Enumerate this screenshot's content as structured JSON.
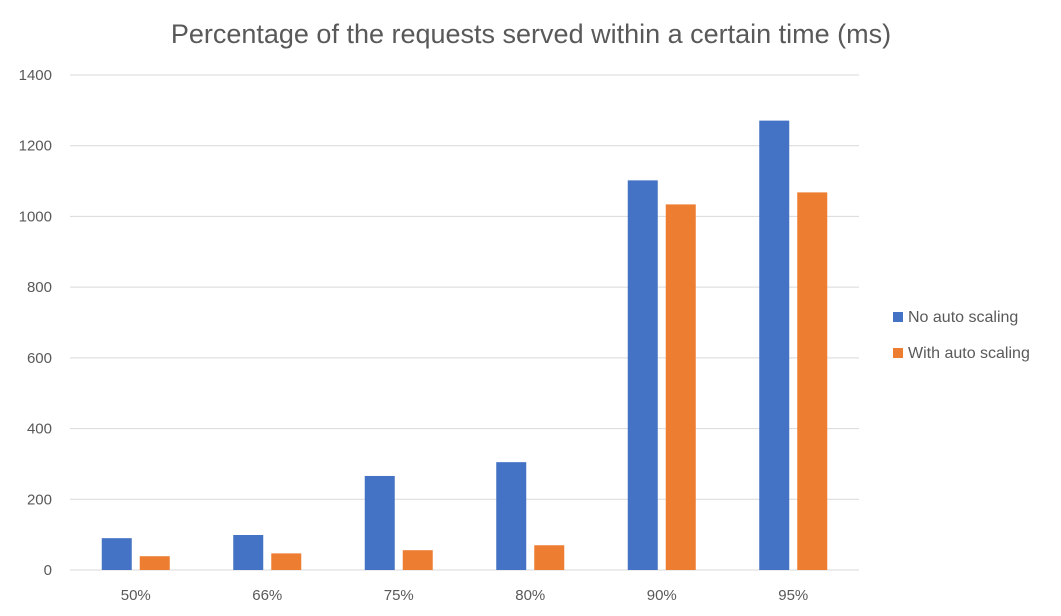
{
  "chart_data": {
    "type": "bar",
    "title": "Percentage of the requests served within a certain time (ms)",
    "categories": [
      "50%",
      "66%",
      "75%",
      "80%",
      "90%",
      "95%"
    ],
    "series": [
      {
        "name": "No auto scaling",
        "color": "#4472C4",
        "values": [
          90,
          99,
          266,
          305,
          1102,
          1271
        ]
      },
      {
        "name": "With auto scaling",
        "color": "#ED7D31",
        "values": [
          39,
          47,
          56,
          70,
          1034,
          1068
        ]
      }
    ],
    "ylim": [
      0,
      1400
    ],
    "yticks": [
      0,
      200,
      400,
      600,
      800,
      1000,
      1200,
      1400
    ],
    "grid": true,
    "legend_position": "right"
  }
}
